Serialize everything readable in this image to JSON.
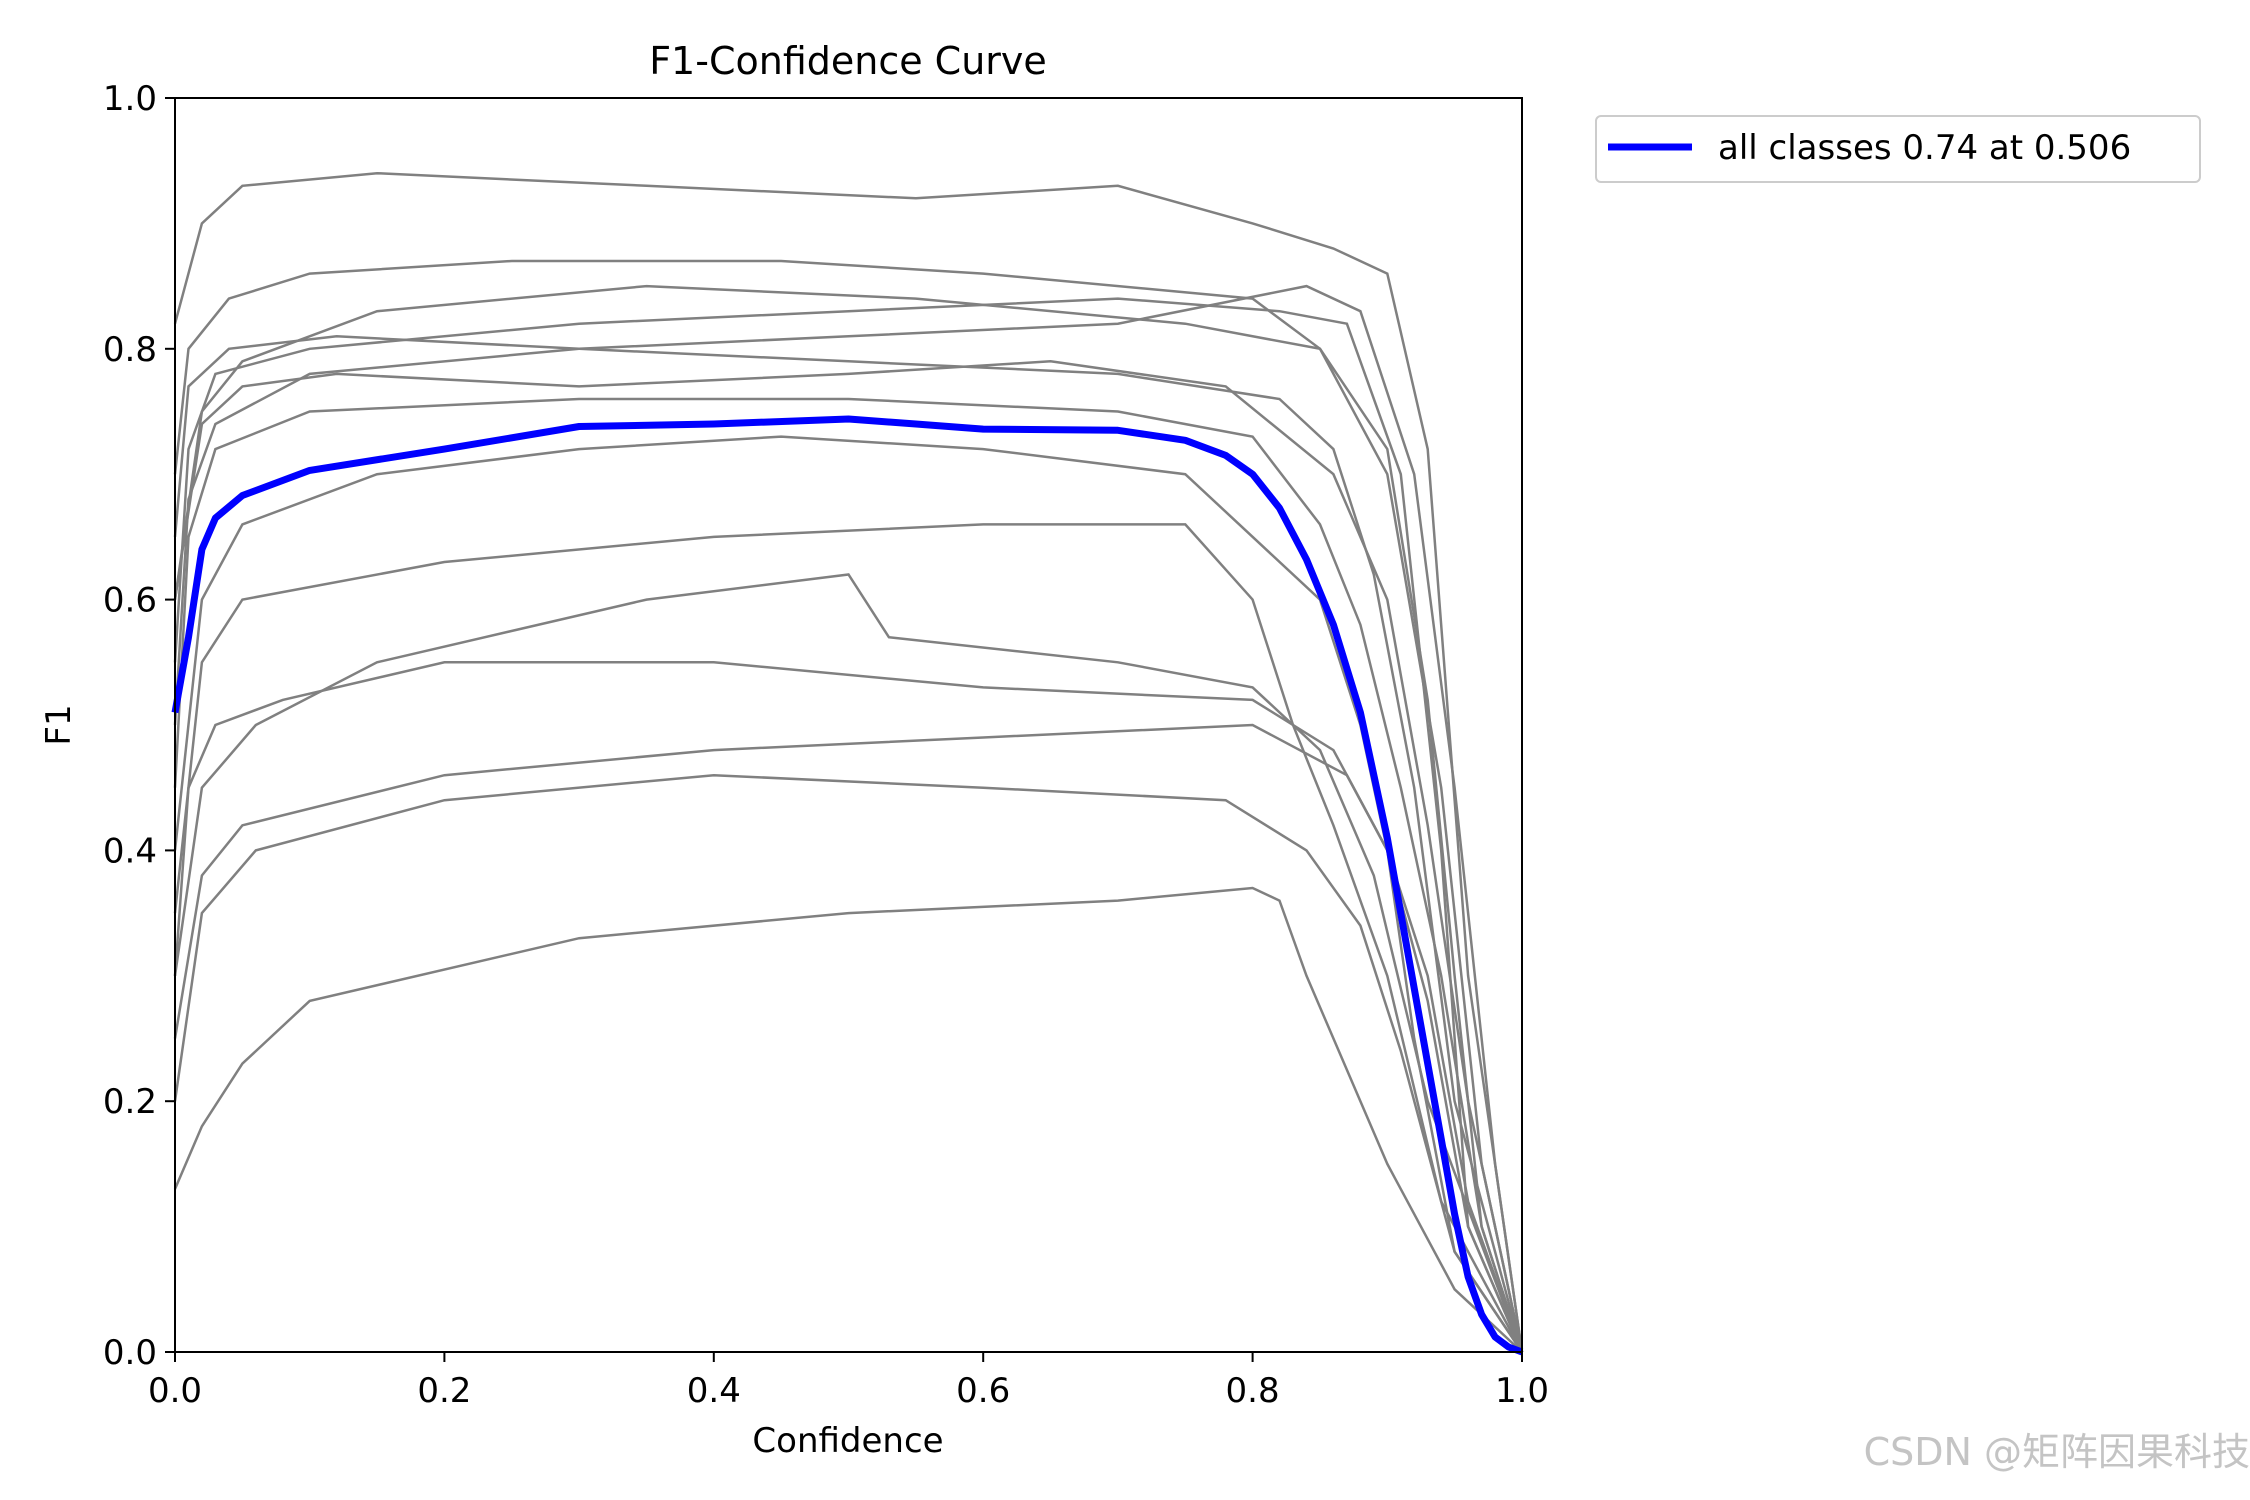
{
  "chart_data": {
    "type": "line",
    "title": "F1-Confidence Curve",
    "xlabel": "Confidence",
    "ylabel": "F1",
    "xlim": [
      0,
      1
    ],
    "ylim": [
      0,
      1
    ],
    "xticks": [
      "0.0",
      "0.2",
      "0.4",
      "0.6",
      "0.8",
      "1.0"
    ],
    "yticks": [
      "0.0",
      "0.2",
      "0.4",
      "0.6",
      "0.8",
      "1.0"
    ],
    "grid": false,
    "legend": {
      "placement": "outside-top-right",
      "entries": [
        "all classes 0.74 at 0.506"
      ]
    },
    "colors": {
      "summary": "#0000ff",
      "per_class": "#808080"
    },
    "series": [
      {
        "name": "all classes 0.74 at 0.506",
        "x": [
          0.0,
          0.01,
          0.02,
          0.03,
          0.05,
          0.1,
          0.2,
          0.3,
          0.4,
          0.5,
          0.55,
          0.6,
          0.7,
          0.75,
          0.78,
          0.8,
          0.82,
          0.84,
          0.86,
          0.88,
          0.9,
          0.92,
          0.94,
          0.95,
          0.96,
          0.97,
          0.98,
          0.99,
          1.0
        ],
        "y": [
          0.51,
          0.57,
          0.64,
          0.665,
          0.683,
          0.703,
          0.72,
          0.738,
          0.74,
          0.744,
          0.74,
          0.736,
          0.735,
          0.727,
          0.715,
          0.7,
          0.673,
          0.632,
          0.58,
          0.51,
          0.41,
          0.29,
          0.17,
          0.11,
          0.06,
          0.03,
          0.012,
          0.004,
          0.0
        ]
      }
    ],
    "per_class_curves": [
      {
        "x": [
          0.0,
          0.02,
          0.05,
          0.15,
          0.35,
          0.55,
          0.7,
          0.8,
          0.86,
          0.9,
          0.93,
          0.96,
          1.0
        ],
        "y": [
          0.82,
          0.9,
          0.93,
          0.94,
          0.93,
          0.92,
          0.93,
          0.9,
          0.88,
          0.86,
          0.72,
          0.3,
          0.0
        ]
      },
      {
        "x": [
          0.0,
          0.01,
          0.03,
          0.1,
          0.3,
          0.5,
          0.7,
          0.82,
          0.87,
          0.91,
          0.94,
          0.96,
          1.0
        ],
        "y": [
          0.55,
          0.72,
          0.78,
          0.8,
          0.82,
          0.83,
          0.84,
          0.83,
          0.82,
          0.7,
          0.4,
          0.1,
          0.0
        ]
      },
      {
        "x": [
          0.0,
          0.02,
          0.05,
          0.15,
          0.35,
          0.55,
          0.75,
          0.85,
          0.9,
          0.93,
          0.95,
          0.97,
          1.0
        ],
        "y": [
          0.6,
          0.75,
          0.79,
          0.83,
          0.85,
          0.84,
          0.82,
          0.8,
          0.72,
          0.52,
          0.3,
          0.1,
          0.0
        ]
      },
      {
        "x": [
          0.0,
          0.01,
          0.03,
          0.1,
          0.3,
          0.5,
          0.7,
          0.8,
          0.85,
          0.88,
          0.91,
          0.94,
          0.97,
          1.0
        ],
        "y": [
          0.45,
          0.65,
          0.72,
          0.75,
          0.76,
          0.76,
          0.75,
          0.73,
          0.66,
          0.58,
          0.45,
          0.3,
          0.1,
          0.0
        ]
      },
      {
        "x": [
          0.0,
          0.02,
          0.05,
          0.15,
          0.3,
          0.45,
          0.6,
          0.75,
          0.85,
          0.88,
          0.9,
          0.92,
          0.95,
          1.0
        ],
        "y": [
          0.4,
          0.6,
          0.66,
          0.7,
          0.72,
          0.73,
          0.72,
          0.7,
          0.6,
          0.5,
          0.4,
          0.25,
          0.08,
          0.0
        ]
      },
      {
        "x": [
          0.0,
          0.02,
          0.05,
          0.2,
          0.4,
          0.6,
          0.75,
          0.8,
          0.83,
          0.86,
          0.9,
          0.94,
          1.0
        ],
        "y": [
          0.35,
          0.55,
          0.6,
          0.63,
          0.65,
          0.66,
          0.66,
          0.6,
          0.5,
          0.42,
          0.3,
          0.12,
          0.0
        ]
      },
      {
        "x": [
          0.0,
          0.01,
          0.03,
          0.08,
          0.2,
          0.4,
          0.6,
          0.8,
          0.86,
          0.9,
          0.93,
          0.96,
          1.0
        ],
        "y": [
          0.3,
          0.45,
          0.5,
          0.52,
          0.55,
          0.55,
          0.53,
          0.52,
          0.48,
          0.4,
          0.28,
          0.1,
          0.0
        ]
      },
      {
        "x": [
          0.0,
          0.02,
          0.06,
          0.2,
          0.4,
          0.6,
          0.78,
          0.84,
          0.88,
          0.91,
          0.95,
          1.0
        ],
        "y": [
          0.2,
          0.35,
          0.4,
          0.44,
          0.46,
          0.45,
          0.44,
          0.4,
          0.34,
          0.24,
          0.08,
          0.0
        ]
      },
      {
        "x": [
          0.0,
          0.02,
          0.05,
          0.1,
          0.3,
          0.5,
          0.7,
          0.8,
          0.82,
          0.84,
          0.9,
          0.95,
          1.0
        ],
        "y": [
          0.13,
          0.18,
          0.23,
          0.28,
          0.33,
          0.35,
          0.36,
          0.37,
          0.36,
          0.3,
          0.15,
          0.05,
          0.0
        ]
      },
      {
        "x": [
          0.0,
          0.01,
          0.04,
          0.1,
          0.25,
          0.45,
          0.6,
          0.8,
          0.85,
          0.9,
          0.94,
          0.97,
          1.0
        ],
        "y": [
          0.7,
          0.8,
          0.84,
          0.86,
          0.87,
          0.87,
          0.86,
          0.84,
          0.8,
          0.7,
          0.45,
          0.15,
          0.0
        ]
      },
      {
        "x": [
          0.0,
          0.02,
          0.05,
          0.12,
          0.3,
          0.5,
          0.65,
          0.78,
          0.86,
          0.9,
          0.93,
          0.96,
          1.0
        ],
        "y": [
          0.6,
          0.74,
          0.77,
          0.78,
          0.77,
          0.78,
          0.79,
          0.77,
          0.7,
          0.6,
          0.42,
          0.2,
          0.0
        ]
      },
      {
        "x": [
          0.0,
          0.02,
          0.06,
          0.15,
          0.35,
          0.5,
          0.53,
          0.7,
          0.8,
          0.85,
          0.89,
          0.93,
          1.0
        ],
        "y": [
          0.3,
          0.45,
          0.5,
          0.55,
          0.6,
          0.62,
          0.57,
          0.55,
          0.53,
          0.48,
          0.38,
          0.2,
          0.0
        ]
      },
      {
        "x": [
          0.0,
          0.01,
          0.03,
          0.1,
          0.3,
          0.5,
          0.7,
          0.84,
          0.88,
          0.92,
          0.95,
          0.98,
          1.0
        ],
        "y": [
          0.5,
          0.68,
          0.74,
          0.78,
          0.8,
          0.81,
          0.82,
          0.85,
          0.83,
          0.7,
          0.45,
          0.15,
          0.0
        ]
      },
      {
        "x": [
          0.0,
          0.02,
          0.05,
          0.2,
          0.4,
          0.6,
          0.8,
          0.87,
          0.9,
          0.93,
          0.96,
          1.0
        ],
        "y": [
          0.25,
          0.38,
          0.42,
          0.46,
          0.48,
          0.49,
          0.5,
          0.46,
          0.4,
          0.3,
          0.12,
          0.0
        ]
      },
      {
        "x": [
          0.0,
          0.01,
          0.04,
          0.12,
          0.3,
          0.5,
          0.7,
          0.82,
          0.86,
          0.89,
          0.92,
          0.95,
          1.0
        ],
        "y": [
          0.65,
          0.77,
          0.8,
          0.81,
          0.8,
          0.79,
          0.78,
          0.76,
          0.72,
          0.62,
          0.45,
          0.2,
          0.0
        ]
      }
    ]
  },
  "watermark": "CSDN @矩阵因果科技"
}
